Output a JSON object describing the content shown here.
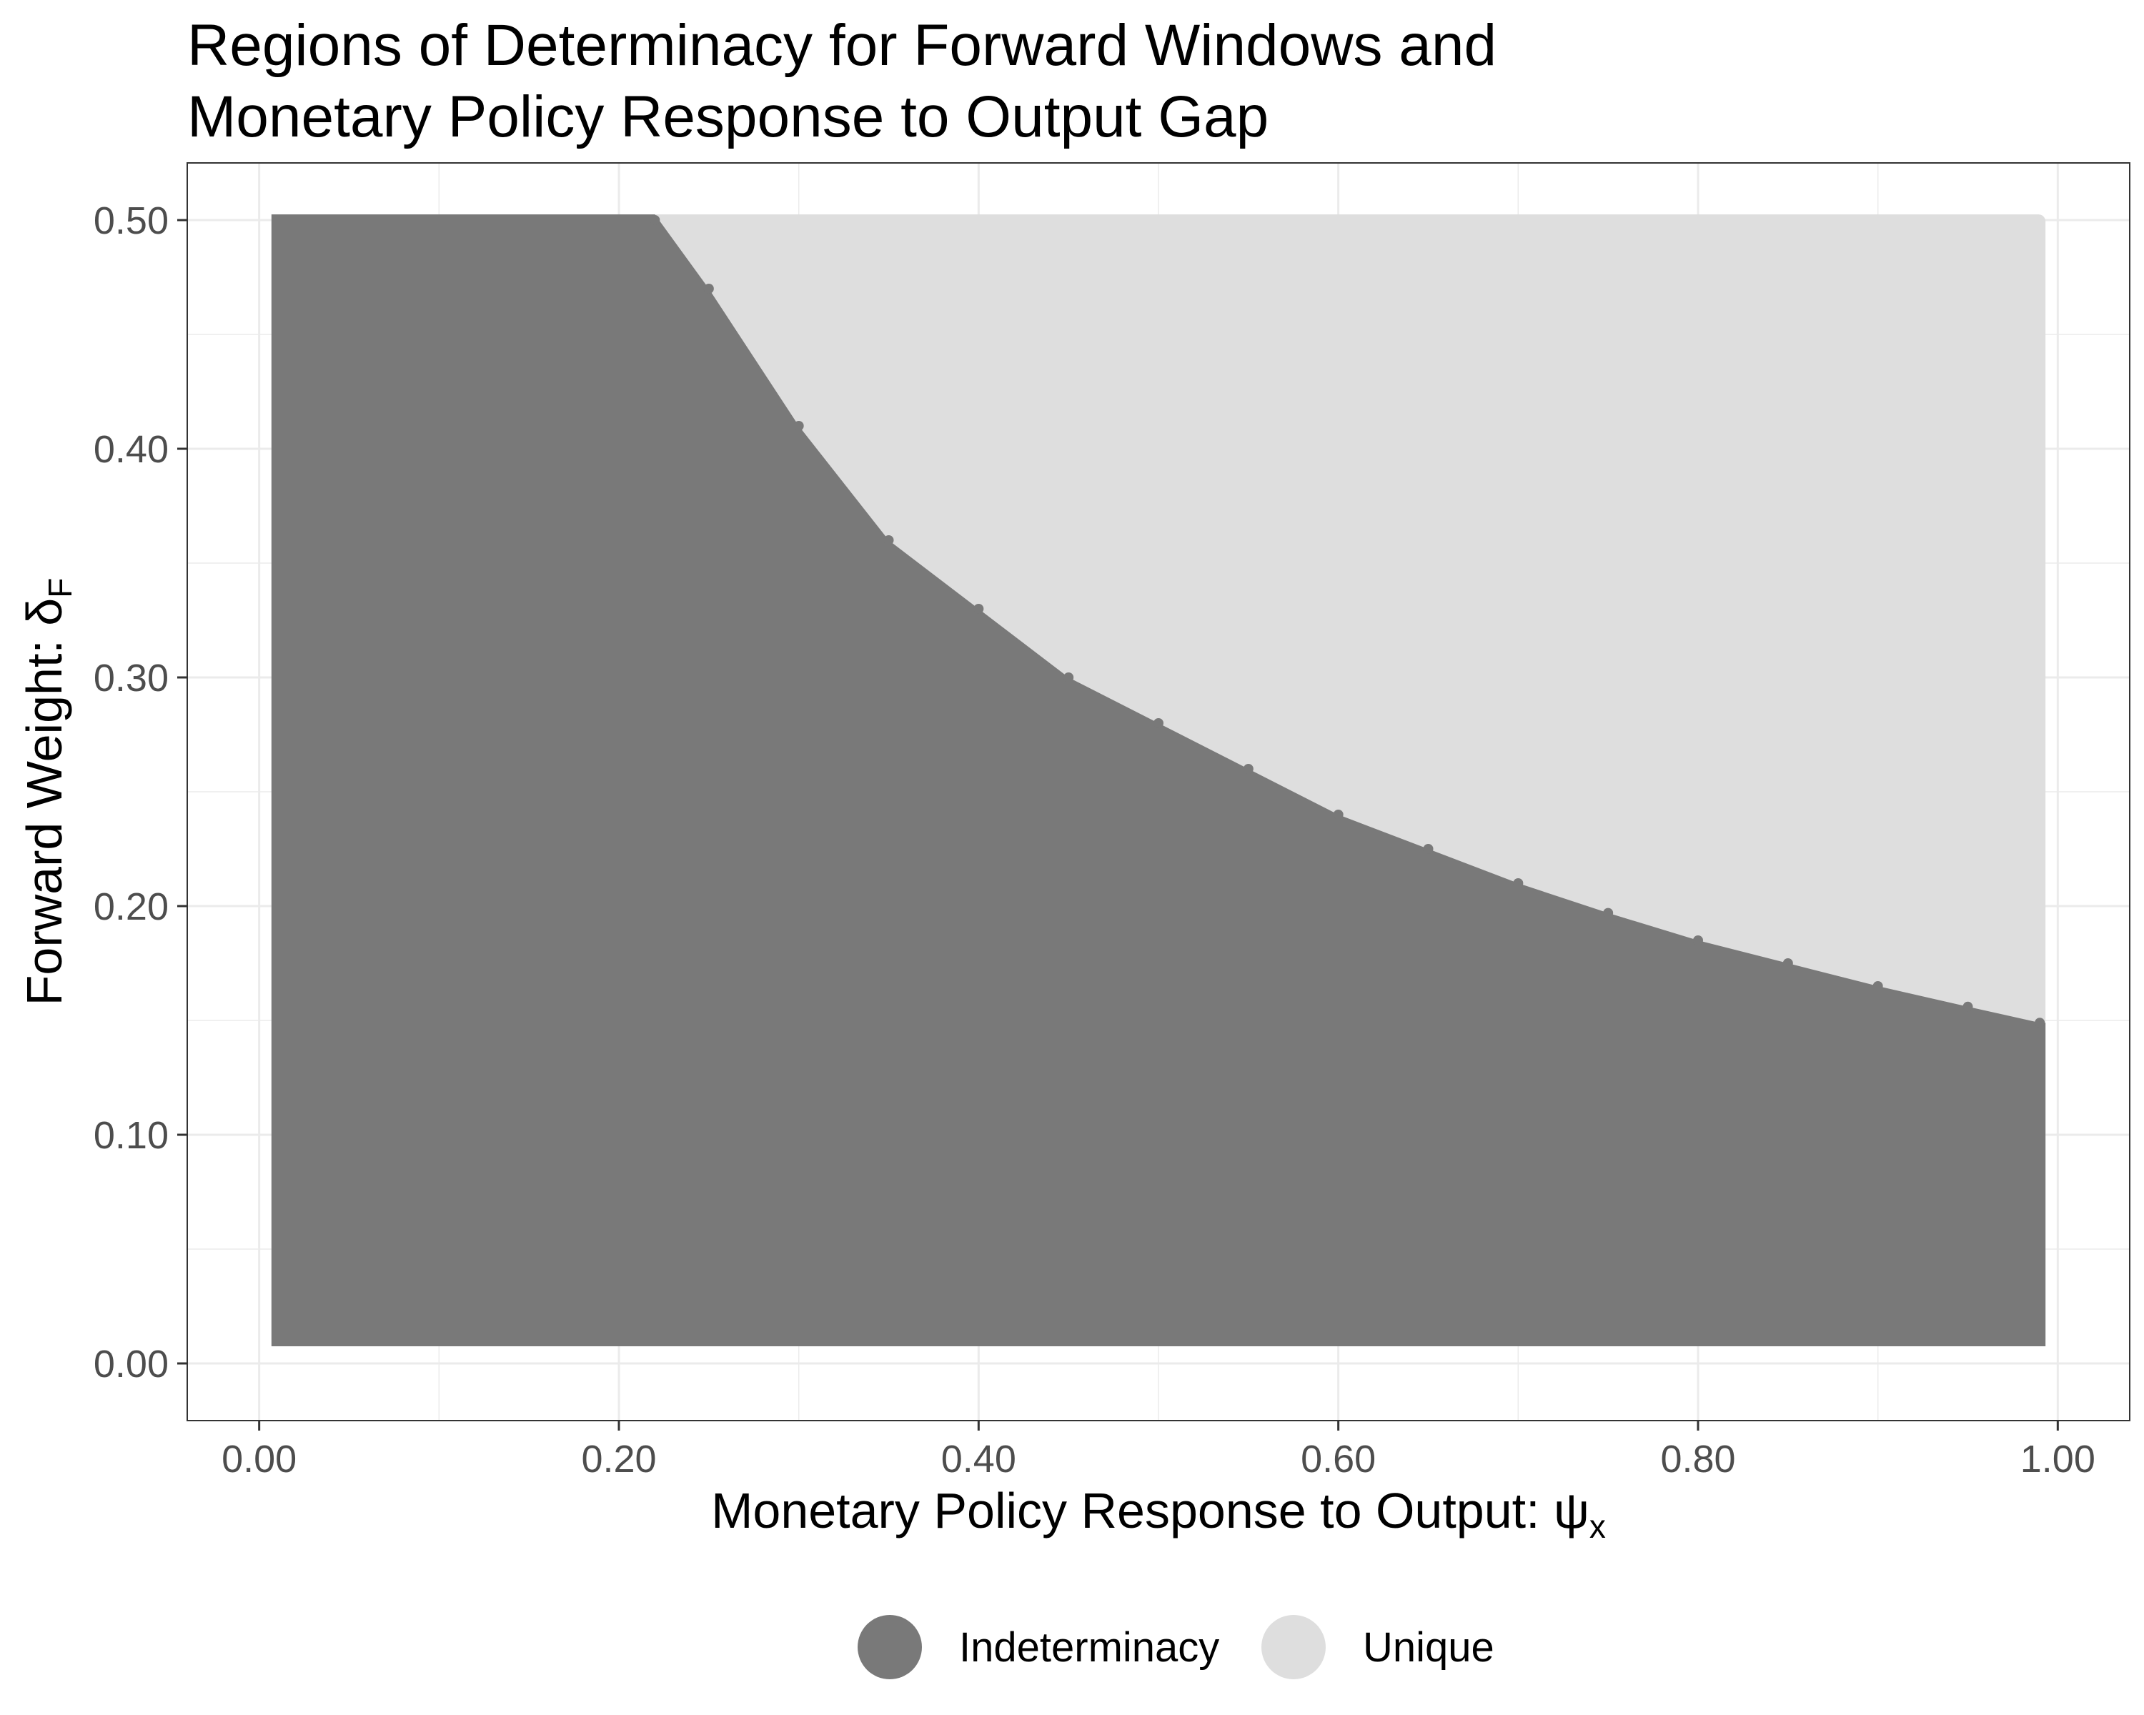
{
  "title_lines": [
    "Regions of Determinacy for Forward Windows and",
    "Monetary Policy Response to Output Gap"
  ],
  "colors": {
    "indeterminacy": "#797979",
    "unique": "#dedede",
    "grid": "#ebebeb",
    "panel_border": "#333333",
    "tick_text": "#4d4d4d"
  },
  "legend": {
    "items": [
      {
        "label": "Indeterminacy",
        "color": "#797979"
      },
      {
        "label": "Unique",
        "color": "#dedede"
      }
    ]
  },
  "chart_data": {
    "type": "scatter",
    "title": "Regions of Determinacy for Forward Windows and Monetary Policy Response to Output Gap",
    "xlabel_text": "Monetary Policy Response to Output: ",
    "xlabel_symbol": "ψ",
    "xlabel_subscript": "x",
    "ylabel_text": "Forward Weight: ",
    "ylabel_symbol": "δ",
    "ylabel_subscript": "F",
    "xlim": [
      -0.04,
      1.04
    ],
    "ylim": [
      -0.025,
      0.525
    ],
    "x_ticks": [
      0.0,
      0.2,
      0.4,
      0.6,
      0.8,
      1.0
    ],
    "x_tick_labels": [
      "0.00",
      "0.20",
      "0.40",
      "0.60",
      "0.80",
      "1.00"
    ],
    "y_ticks": [
      0.0,
      0.1,
      0.2,
      0.3,
      0.4,
      0.5
    ],
    "y_tick_labels": [
      "0.00",
      "0.10",
      "0.20",
      "0.30",
      "0.40",
      "0.50"
    ],
    "grid": true,
    "legend_position": "bottom",
    "grid_x_range": [
      0.01,
      0.99
    ],
    "grid_y_range": [
      0.01,
      0.5
    ],
    "series": [
      {
        "name": "Indeterminacy",
        "color": "#797979",
        "region": "below boundary"
      },
      {
        "name": "Unique",
        "color": "#dedede",
        "region": "above boundary"
      }
    ],
    "boundary": {
      "x": [
        0.22,
        0.25,
        0.3,
        0.35,
        0.4,
        0.45,
        0.5,
        0.55,
        0.6,
        0.65,
        0.7,
        0.75,
        0.8,
        0.85,
        0.9,
        0.95,
        0.99
      ],
      "y": [
        0.5,
        0.47,
        0.41,
        0.36,
        0.33,
        0.3,
        0.28,
        0.26,
        0.24,
        0.225,
        0.21,
        0.197,
        0.185,
        0.175,
        0.165,
        0.156,
        0.149
      ]
    }
  }
}
